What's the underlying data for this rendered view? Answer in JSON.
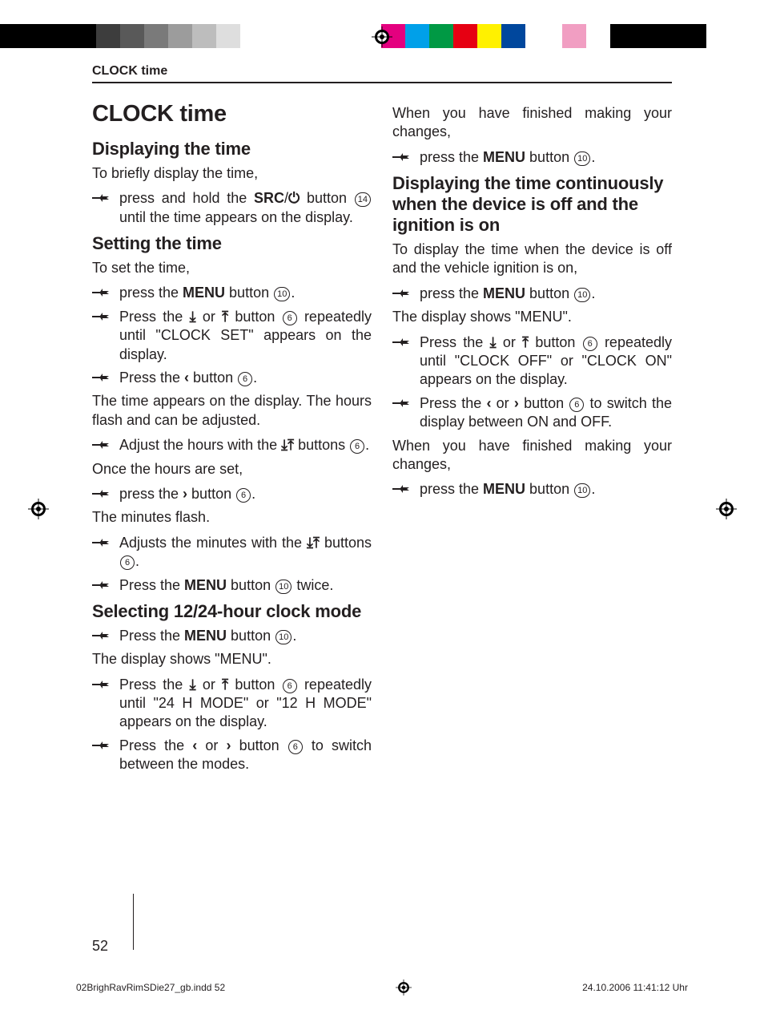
{
  "colorbar": [
    "#000000",
    "#000000",
    "#3d3d3d",
    "#595959",
    "#7a7a7a",
    "#9c9c9c",
    "#bdbdbd",
    "#dedede",
    "#ffffff",
    "#ffffff",
    "#ffffff",
    "#ffffff",
    "#e4007f",
    "#00a0e9",
    "#009944",
    "#e60012",
    "#fff100",
    "#00479d",
    "#ffffff",
    "#f19ec2",
    "#ffffff",
    "#000000"
  ],
  "header": "CLOCK time",
  "title": "CLOCK time",
  "refs": {
    "src": "SRC",
    "menu": "MENU"
  },
  "nums": {
    "six": "6",
    "ten": "10",
    "fourteen": "14"
  },
  "left": {
    "h_display": "Displaying the time",
    "p_display": "To briefly display the time,",
    "s_display": [
      "press and hold the ",
      "/",
      " button ",
      " until the time appears on the display."
    ],
    "h_set": "Setting the time",
    "p_set": "To set the time,",
    "s_menu": [
      "press the ",
      " button ",
      "."
    ],
    "s_clockset": [
      "Press the ",
      " or ",
      " button ",
      " repeatedly until \"CLOCK SET\" appears on the display."
    ],
    "s_left": [
      "Press the ",
      " button ",
      "."
    ],
    "p_hours": "The time appears on the display. The hours flash and can be adjusted.",
    "s_hours": [
      "Adjust the hours with the ",
      " buttons ",
      "."
    ],
    "p_once": "Once the hours are set,",
    "s_right": [
      "press the ",
      " button ",
      "."
    ],
    "p_min": "The minutes flash.",
    "s_min": [
      "Adjusts the minutes with the ",
      " buttons ",
      "."
    ],
    "s_twice": [
      "Press the ",
      " button ",
      " twice."
    ],
    "h_mode": "Selecting 12/24-hour clock mode",
    "s_mode1": [
      "Press the ",
      " button ",
      "."
    ],
    "p_mode": "The display shows \"MENU\".",
    "s_mode2": [
      "Press the ",
      " or ",
      " button ",
      " repeatedly until \"24 H MODE\" or \"12 H MODE\" appears on the display."
    ],
    "s_mode3": [
      "Press the ",
      " or ",
      " button ",
      " to switch between the modes."
    ]
  },
  "right": {
    "p_finish": "When you have finished making your changes,",
    "s_menu": [
      "press the ",
      " button ",
      "."
    ],
    "h_cont": "Displaying the time continuously when the device is off and the ignition is on",
    "p_cont": "To display the time when the device is off and the vehicle ignition is on,",
    "p_menu": "The display shows \"MENU\".",
    "s_clockoff": [
      "Press the ",
      " or ",
      " button ",
      " repeatedly until \"CLOCK OFF\" or \"CLOCK ON\" appears on the display."
    ],
    "s_switch": [
      "Press the ",
      " or ",
      " button ",
      " to switch the display between ON and OFF."
    ]
  },
  "pagenum": "52",
  "footer": {
    "file": "02BrighRavRimSDie27_gb.indd   52",
    "time": "24.10.2006   11:41:12 Uhr"
  },
  "icons": {
    "power": "⏻",
    "down": "⤓",
    "up": "⤒",
    "left": "‹",
    "right": "›"
  }
}
